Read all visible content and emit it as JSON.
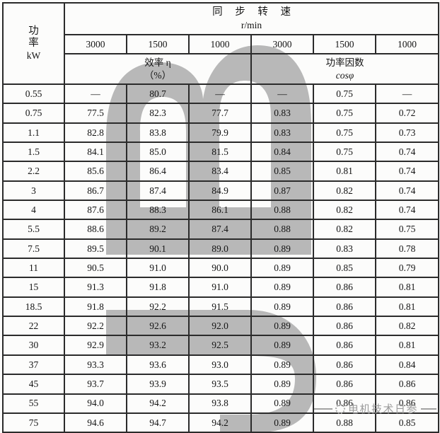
{
  "table": {
    "power_header": {
      "label": "功  率",
      "unit": "kW"
    },
    "speed_header": {
      "label": "同 步 转 速",
      "unit": "r/min"
    },
    "speed_columns": [
      "3000",
      "1500",
      "1000",
      "3000",
      "1500",
      "1000"
    ],
    "efficiency_header": {
      "label": "效率  η",
      "unit": "（%）"
    },
    "power_factor_header": {
      "label": "功率因数",
      "unit": "cosφ"
    },
    "rows": [
      {
        "power": "0.55",
        "values": [
          "—",
          "80.7",
          "—",
          "—",
          "0.75",
          "—"
        ]
      },
      {
        "power": "0.75",
        "values": [
          "77.5",
          "82.3",
          "77.7",
          "0.83",
          "0.75",
          "0.72"
        ]
      },
      {
        "power": "1.1",
        "values": [
          "82.8",
          "83.8",
          "79.9",
          "0.83",
          "0.75",
          "0.73"
        ]
      },
      {
        "power": "1.5",
        "values": [
          "84.1",
          "85.0",
          "81.5",
          "0.84",
          "0.75",
          "0.74"
        ]
      },
      {
        "power": "2.2",
        "values": [
          "85.6",
          "86.4",
          "83.4",
          "0.85",
          "0.81",
          "0.74"
        ]
      },
      {
        "power": "3",
        "values": [
          "86.7",
          "87.4",
          "84.9",
          "0.87",
          "0.82",
          "0.74"
        ]
      },
      {
        "power": "4",
        "values": [
          "87.6",
          "88.3",
          "86.1",
          "0.88",
          "0.82",
          "0.74"
        ]
      },
      {
        "power": "5.5",
        "values": [
          "88.6",
          "89.2",
          "87.4",
          "0.88",
          "0.82",
          "0.75"
        ]
      },
      {
        "power": "7.5",
        "values": [
          "89.5",
          "90.1",
          "89.0",
          "0.89",
          "0.83",
          "0.78"
        ]
      },
      {
        "power": "11",
        "values": [
          "90.5",
          "91.0",
          "90.0",
          "0.89",
          "0.85",
          "0.79"
        ]
      },
      {
        "power": "15",
        "values": [
          "91.3",
          "91.8",
          "91.0",
          "0.89",
          "0.86",
          "0.81"
        ]
      },
      {
        "power": "18.5",
        "values": [
          "91.8",
          "92.2",
          "91.5",
          "0.89",
          "0.86",
          "0.81"
        ]
      },
      {
        "power": "22",
        "values": [
          "92.2",
          "92.6",
          "92.0",
          "0.89",
          "0.86",
          "0.82"
        ]
      },
      {
        "power": "30",
        "values": [
          "92.9",
          "93.2",
          "92.5",
          "0.89",
          "0.86",
          "0.81"
        ]
      },
      {
        "power": "37",
        "values": [
          "93.3",
          "93.6",
          "93.0",
          "0.89",
          "0.86",
          "0.84"
        ]
      },
      {
        "power": "45",
        "values": [
          "93.7",
          "93.9",
          "93.5",
          "0.89",
          "0.86",
          "0.86"
        ]
      },
      {
        "power": "55",
        "values": [
          "94.0",
          "94.2",
          "93.8",
          "0.89",
          "0.86",
          "0.86"
        ]
      },
      {
        "power": "75",
        "values": [
          "94.6",
          "94.7",
          "94.2",
          "0.89",
          "0.88",
          "0.85"
        ]
      }
    ]
  },
  "watermark": {
    "brand_text": "电机技术日参",
    "shape_color": "#b8b8b8",
    "text_color": "#9c9c9c",
    "shapes": [
      "m-arches-shape",
      "five-curve-shape"
    ]
  }
}
